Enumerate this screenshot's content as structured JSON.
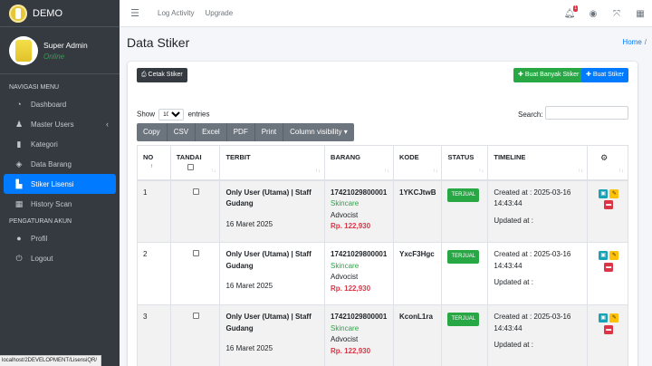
{
  "sidebar": {
    "brand": "DEMO",
    "user": {
      "name": "Super Admin",
      "status": "Online"
    },
    "header_main": "NAVIGASI MENU",
    "header_account": "PENGATURAN AKUN",
    "items": [
      {
        "label": "Dashboard",
        "icon": "tachometer-icon"
      },
      {
        "label": "Master Users",
        "icon": "users-icon"
      },
      {
        "label": "Kategori",
        "icon": "bookmark-icon"
      },
      {
        "label": "Data Barang",
        "icon": "box-icon"
      },
      {
        "label": "Stiker Lisensi",
        "icon": "sticker-icon",
        "active": true
      },
      {
        "label": "History Scan",
        "icon": "qrcode-icon"
      }
    ],
    "account_items": [
      {
        "label": "Profil",
        "icon": "user-circle-icon"
      },
      {
        "label": "Logout",
        "icon": "power-icon"
      }
    ]
  },
  "status_url": "localhost/2DEVELOPMENT/LisensiQR/",
  "topbar": {
    "log_activity": "Log Activity",
    "upgrade": "Upgrade",
    "notif_count": "1"
  },
  "page": {
    "title": "Data Stiker",
    "breadcrumb_home": "Home",
    "breadcrumb_sep": "/"
  },
  "toolbar": {
    "cetak": "Cetak Stiker",
    "buat_banyak": "Buat Banyak Stiker",
    "buat": "Buat Stiker",
    "show": "Show",
    "entries_value": "10",
    "entries": "entries",
    "search": "Search:"
  },
  "export_buttons": [
    "Copy",
    "CSV",
    "Excel",
    "PDF",
    "Print",
    "Column visibility ▾"
  ],
  "table": {
    "headers": [
      "NO",
      "TANDAI",
      "TERBIT",
      "BARANG",
      "KODE",
      "STATUS",
      "TIMELINE"
    ],
    "rows": [
      {
        "no": "1",
        "terbit_title": "Only User (Utama) | Staff Gudang",
        "terbit_date": "16 Maret 2025",
        "barang_code": "17421029800001",
        "barang_cat": "Skincare",
        "barang_brand": "Advocist",
        "barang_price": "Rp. 122,930",
        "kode": "1YKCJtwB",
        "status": "TERJUAL",
        "created": "Created at : 2025-03-16 14:43:44",
        "updated": "Updated at :"
      },
      {
        "no": "2",
        "terbit_title": "Only User (Utama) | Staff Gudang",
        "terbit_date": "16 Maret 2025",
        "barang_code": "17421029800001",
        "barang_cat": "Skincare",
        "barang_brand": "Advocist",
        "barang_price": "Rp. 122,930",
        "kode": "YxcF3Hgc",
        "status": "TERJUAL",
        "created": "Created at : 2025-03-16 14:43:44",
        "updated": "Updated at :"
      },
      {
        "no": "3",
        "terbit_title": "Only User (Utama) | Staff Gudang",
        "terbit_date": "16 Maret 2025",
        "barang_code": "17421029800001",
        "barang_cat": "Skincare",
        "barang_brand": "Advocist",
        "barang_price": "Rp. 122,930",
        "kode": "KconL1ra",
        "status": "TERJUAL",
        "created": "Created at : 2025-03-16 14:43:44",
        "updated": "Updated at :"
      }
    ]
  }
}
